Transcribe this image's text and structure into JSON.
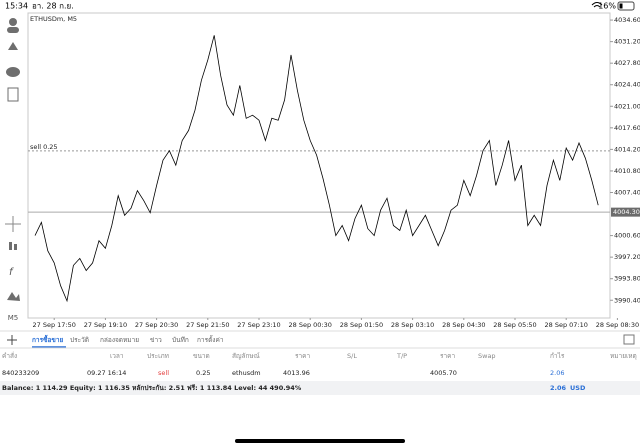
{
  "status_bar": {
    "time": "15:34",
    "date": "อา. 28 ก.ย.",
    "battery": "16%"
  },
  "toolbar": {
    "timeframe": "M5"
  },
  "chart_data": {
    "type": "line",
    "title": "ETHUSDm, M5",
    "color": "#000000",
    "categories": [
      null,
      null,
      null,
      "27 Sep 17:50",
      null,
      null,
      null,
      null,
      null,
      null,
      null,
      "27 Sep 19:10",
      null,
      null,
      null,
      null,
      null,
      null,
      null,
      "27 Sep 20:30",
      null,
      null,
      null,
      null,
      null,
      null,
      null,
      "27 Sep 21:50",
      null,
      null,
      null,
      null,
      null,
      null,
      null,
      "27 Sep 23:10",
      null,
      null,
      null,
      null,
      null,
      null,
      null,
      "28 Sep 00:30",
      null,
      null,
      null,
      null,
      null,
      null,
      null,
      "28 Sep 01:50",
      null,
      null,
      null,
      null,
      null,
      null,
      null,
      "28 Sep 03:10",
      null,
      null,
      null,
      null,
      null,
      null,
      null,
      "28 Sep 04:30",
      null,
      null,
      null,
      null,
      null,
      null,
      null,
      "28 Sep 05:50",
      null,
      null,
      null,
      null,
      null,
      null,
      null,
      "28 Sep 07:10",
      null,
      null,
      null,
      null,
      null,
      null,
      null,
      "28 Sep 08:30"
    ],
    "values": [
      4000.6,
      4002.7,
      3998.2,
      3996.3,
      3992.7,
      3990.3,
      3995.9,
      3997.0,
      3995.1,
      3996.3,
      3999.8,
      3998.6,
      4002.2,
      4006.9,
      4003.8,
      4004.9,
      4007.7,
      4006.1,
      4004.2,
      4008.5,
      4012.5,
      4014.0,
      4011.7,
      4015.6,
      4017.2,
      4020.4,
      4025.1,
      4028.3,
      4032.2,
      4025.9,
      4021.2,
      4019.6,
      4024.3,
      4019.1,
      4019.6,
      4018.8,
      4015.6,
      4019.1,
      4018.8,
      4022.0,
      4029.1,
      4023.5,
      4018.8,
      4015.6,
      4013.3,
      4009.6,
      4005.4,
      4000.6,
      4002.2,
      3999.8,
      4003.3,
      4005.4,
      4001.7,
      4000.6,
      4004.6,
      4006.5,
      4002.2,
      4001.4,
      4004.6,
      4000.6,
      4002.2,
      4003.8,
      4001.4,
      3999.0,
      4001.4,
      4004.6,
      4005.4,
      4009.3,
      4006.9,
      4010.1,
      4014.0,
      4015.6,
      4008.5,
      4011.7,
      4015.6,
      4009.3,
      4011.7,
      4002.2,
      4003.8,
      4002.2,
      4008.5,
      4012.5,
      4009.3,
      4014.4,
      4012.5,
      4015.2,
      4012.8,
      4009.3,
      4005.4,
      null,
      null,
      null
    ],
    "ylim": [
      3987.6,
      4035.4
    ],
    "yticks": [
      {
        "value": 3990.4,
        "label": "3990.40"
      },
      {
        "value": 3993.8,
        "label": "3993.80"
      },
      {
        "value": 3997.2,
        "label": "3997.20"
      },
      {
        "value": 4000.6,
        "label": "4000.60"
      },
      {
        "value": 4007.4,
        "label": "4007.40"
      },
      {
        "value": 4010.8,
        "label": "4010.80"
      },
      {
        "value": 4014.2,
        "label": "4014.20"
      },
      {
        "value": 4017.6,
        "label": "4017.60"
      },
      {
        "value": 4021.0,
        "label": "4021.00"
      },
      {
        "value": 4024.4,
        "label": "4024.40"
      },
      {
        "value": 4027.8,
        "label": "4027.80"
      },
      {
        "value": 4031.2,
        "label": "4031.20"
      },
      {
        "value": 4034.6,
        "label": "4034.60"
      }
    ],
    "current_price": {
      "value": 4004.3,
      "label": "4004.30"
    },
    "order_line": {
      "value": 4013.96,
      "label": "sell 0.25"
    }
  },
  "tabs": [
    "การซื้อขาย",
    "ประวัติ",
    "กล่องจดหมาย",
    "ข่าว",
    "บันทึก",
    "การตั้งค่า"
  ],
  "table": {
    "headers": [
      "คำสั่ง",
      "เวลา",
      "ประเภท",
      "ขนาด",
      "สัญลักษณ์",
      "ราคา",
      "S/L",
      "T/P",
      "ราคา",
      "Swap",
      "กำไร",
      "หมายเหตุ"
    ],
    "rows": [
      {
        "order": "840233209",
        "time": "09.27 16:14",
        "type": "sell",
        "size": "0.25",
        "symbol": "ethusdm",
        "open_price": "4013.96",
        "price": "4005.70",
        "profit": "2.06"
      }
    ]
  },
  "summary": {
    "text": "Balance: 1 114.29 Equity: 1 116.35 หลักประกัน: 2.51 ฟรี: 1 113.84 Level: 44 490.94%",
    "profit": "2.06",
    "currency": "USD"
  }
}
